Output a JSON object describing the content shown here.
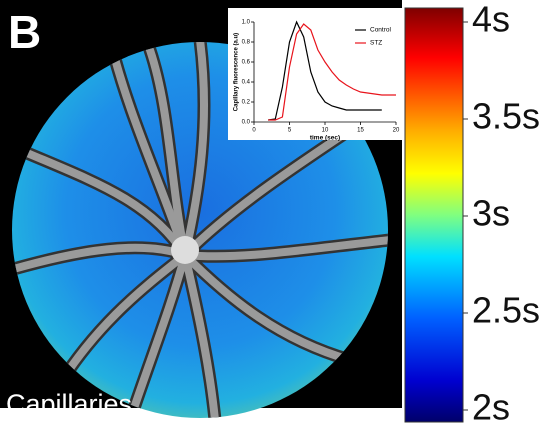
{
  "panel_label": "B",
  "image_label": "Capillaries",
  "colorbar": {
    "ylim": [
      2,
      4
    ],
    "yticks": [
      {
        "value": 4,
        "label": "4s"
      },
      {
        "value": 3.5,
        "label": "3.5s"
      },
      {
        "value": 3,
        "label": "3s"
      },
      {
        "value": 2.5,
        "label": "2.5s"
      },
      {
        "value": 2,
        "label": "2s"
      }
    ]
  },
  "chart_data": {
    "type": "line",
    "xlabel": "time (sec)",
    "ylabel": "Capillary fluorescence (a.u)",
    "x": [
      2,
      3,
      4,
      5,
      6,
      7,
      8,
      9,
      10,
      11,
      12,
      13,
      14,
      15,
      16,
      17,
      18,
      19,
      20
    ],
    "series": [
      {
        "name": "Control",
        "color": "#000000",
        "values": [
          0.02,
          0.03,
          0.35,
          0.8,
          1.0,
          0.85,
          0.5,
          0.3,
          0.2,
          0.16,
          0.14,
          0.12,
          0.12,
          0.12,
          0.12,
          0.12,
          0.12,
          null,
          null
        ]
      },
      {
        "name": "STZ",
        "color": "#e8141c",
        "values": [
          0.02,
          0.02,
          0.05,
          0.55,
          0.88,
          0.98,
          0.92,
          0.72,
          0.6,
          0.5,
          0.42,
          0.37,
          0.33,
          0.3,
          0.29,
          0.28,
          0.27,
          0.27,
          0.27
        ]
      }
    ],
    "xlim": [
      0,
      20
    ],
    "xticks": [
      0,
      5,
      10,
      15,
      20
    ],
    "ylim": [
      0,
      1
    ],
    "yticks": [
      {
        "value": 0,
        "label": "0.0"
      },
      {
        "value": 0.2,
        "label": "0.2"
      },
      {
        "value": 0.4,
        "label": "0.4"
      },
      {
        "value": 0.6,
        "label": "0.6"
      },
      {
        "value": 0.8,
        "label": "0.8"
      },
      {
        "value": 1,
        "label": "1.0"
      }
    ]
  }
}
